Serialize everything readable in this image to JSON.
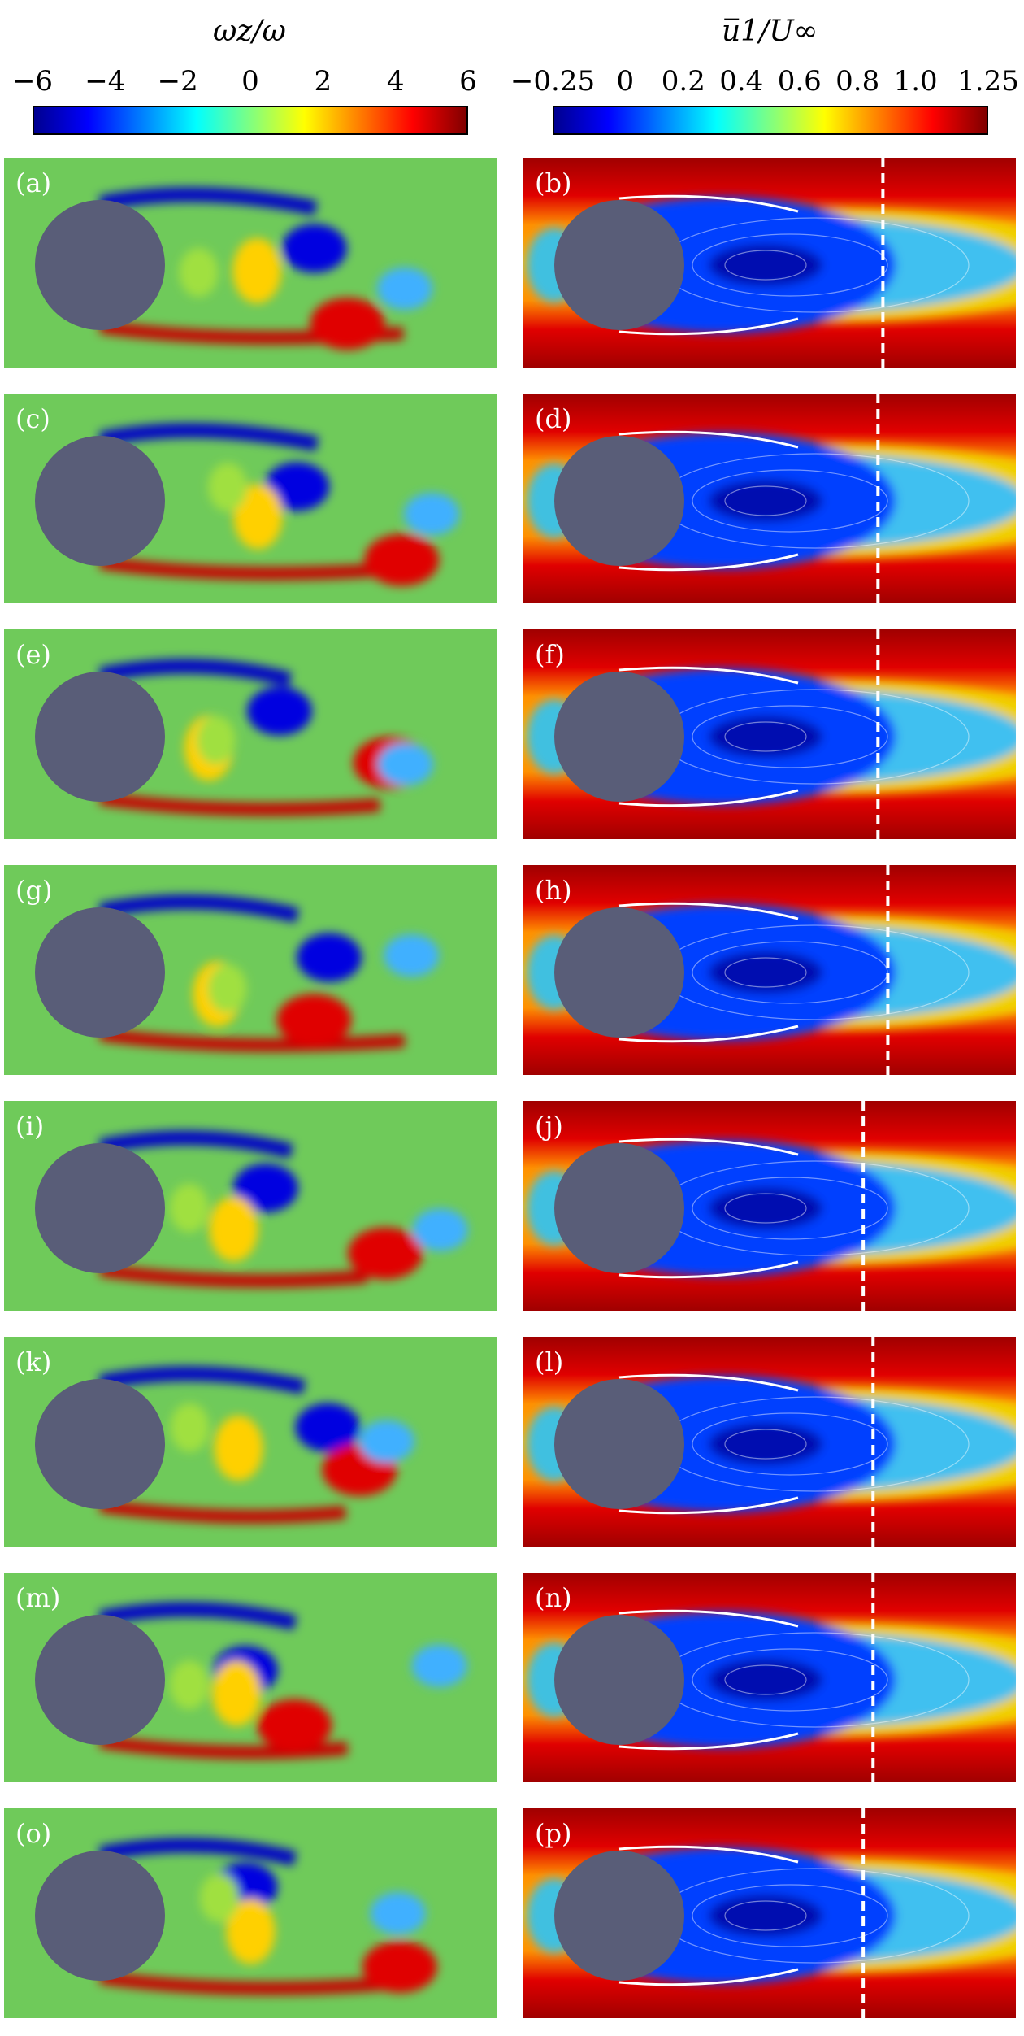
{
  "colorbars": [
    {
      "title": "ωz/ω",
      "ticks": [
        "−6",
        "−4",
        "−2",
        "0",
        "2",
        "4",
        "6"
      ],
      "tick_values": [
        -6,
        -4,
        -2,
        0,
        2,
        4,
        6
      ],
      "range": [
        -6,
        6
      ]
    },
    {
      "title": "u̅1/U∞",
      "ticks": [
        "−0.25",
        "0",
        "0.2",
        "0.4",
        "0.6",
        "0.8",
        "1.0",
        "1.25"
      ],
      "tick_values": [
        -0.25,
        0,
        0.2,
        0.4,
        0.6,
        0.8,
        1.0,
        1.25
      ],
      "range": [
        -0.25,
        1.25
      ]
    }
  ],
  "colors": {
    "jet": [
      "#00008f",
      "#0000ff",
      "#0080ff",
      "#00ffff",
      "#80ff80",
      "#ffff00",
      "#ff8000",
      "#ff0000",
      "#800000"
    ],
    "background_field": "#6fca5a",
    "cylinder": "#595d78",
    "dashed_line": "#ffffff"
  },
  "panels": [
    {
      "label": "(a)",
      "type": "vorticity"
    },
    {
      "label": "(b)",
      "type": "mean-velocity",
      "recirculation_end": 0.73
    },
    {
      "label": "(c)",
      "type": "vorticity"
    },
    {
      "label": "(d)",
      "type": "mean-velocity",
      "recirculation_end": 0.72
    },
    {
      "label": "(e)",
      "type": "vorticity"
    },
    {
      "label": "(f)",
      "type": "mean-velocity",
      "recirculation_end": 0.72
    },
    {
      "label": "(g)",
      "type": "vorticity"
    },
    {
      "label": "(h)",
      "type": "mean-velocity",
      "recirculation_end": 0.74
    },
    {
      "label": "(i)",
      "type": "vorticity"
    },
    {
      "label": "(j)",
      "type": "mean-velocity",
      "recirculation_end": 0.69
    },
    {
      "label": "(k)",
      "type": "vorticity"
    },
    {
      "label": "(l)",
      "type": "mean-velocity",
      "recirculation_end": 0.71
    },
    {
      "label": "(m)",
      "type": "vorticity"
    },
    {
      "label": "(n)",
      "type": "mean-velocity",
      "recirculation_end": 0.71
    },
    {
      "label": "(o)",
      "type": "vorticity"
    },
    {
      "label": "(p)",
      "type": "mean-velocity",
      "recirculation_end": 0.69
    }
  ]
}
